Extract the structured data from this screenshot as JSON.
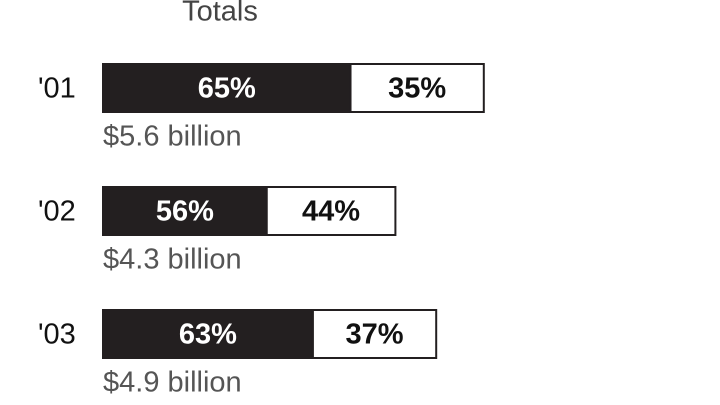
{
  "chart_data": {
    "type": "bar",
    "title": "Totals",
    "categories": [
      "'01",
      "'02",
      "'03"
    ],
    "series": [
      {
        "color": "#231f20",
        "values": [
          65,
          56,
          63
        ],
        "value_labels": [
          "65%",
          "56%",
          "63%"
        ]
      },
      {
        "color": "#ffffff",
        "values": [
          35,
          44,
          37
        ],
        "value_labels": [
          "35%",
          "44%",
          "37%"
        ]
      }
    ],
    "totals": {
      "values": [
        5.6,
        4.3,
        4.9
      ],
      "value_labels": [
        "$5.6 billion",
        "$4.3 billion",
        "$4.9 billion"
      ]
    }
  }
}
